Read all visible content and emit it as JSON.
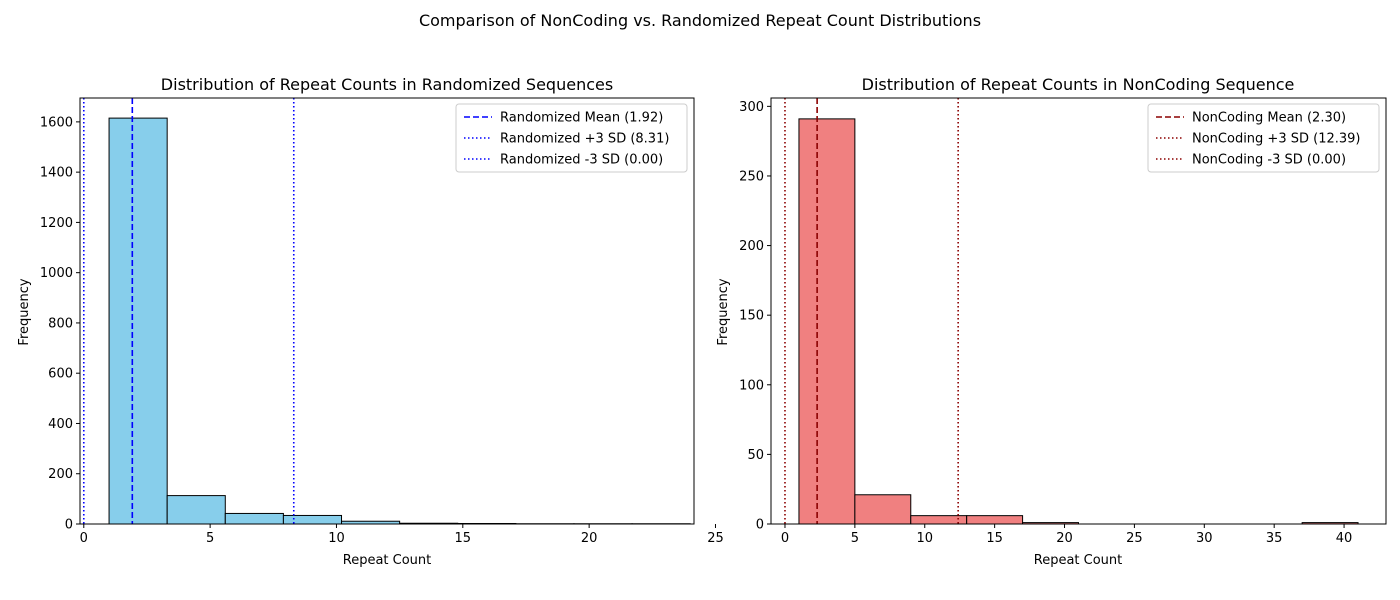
{
  "figure": {
    "suptitle": "Comparison of NonCoding vs. Randomized Repeat Count Distributions"
  },
  "chart_data": [
    {
      "type": "bar",
      "histogram": true,
      "title": "Distribution of Repeat Counts in Randomized Sequences",
      "xlabel": "Repeat Count",
      "ylabel": "Frequency",
      "xlim": [
        -0.15,
        24.15
      ],
      "ylim": [
        0,
        1695
      ],
      "xticks": [
        0,
        5,
        10,
        15,
        20,
        25
      ],
      "yticks": [
        0,
        200,
        400,
        600,
        800,
        1000,
        1200,
        1400,
        1600
      ],
      "bins": [
        {
          "start": 1.0,
          "end": 3.3,
          "value": 1615
        },
        {
          "start": 3.3,
          "end": 5.6,
          "value": 113
        },
        {
          "start": 5.6,
          "end": 7.9,
          "value": 42
        },
        {
          "start": 7.9,
          "end": 10.2,
          "value": 34
        },
        {
          "start": 10.2,
          "end": 12.5,
          "value": 11
        },
        {
          "start": 12.5,
          "end": 14.8,
          "value": 3
        },
        {
          "start": 14.8,
          "end": 17.1,
          "value": 2
        },
        {
          "start": 17.1,
          "end": 19.4,
          "value": 1
        },
        {
          "start": 19.4,
          "end": 21.7,
          "value": 1
        },
        {
          "start": 21.7,
          "end": 24.0,
          "value": 1
        }
      ],
      "bar_color": "#87ceeb",
      "edge_color": "#000000",
      "lines": [
        {
          "x": 1.92,
          "style": "dashed",
          "color": "#0000ff",
          "label": "Randomized Mean (1.92)"
        },
        {
          "x": 8.31,
          "style": "dotted",
          "color": "#0000ff",
          "label": "Randomized +3 SD (8.31)"
        },
        {
          "x": 0.0,
          "style": "dotted",
          "color": "#0000ff",
          "label": "Randomized -3 SD (0.00)"
        }
      ],
      "legend_position": "top-right"
    },
    {
      "type": "bar",
      "histogram": true,
      "title": "Distribution of Repeat Counts in NonCoding Sequence",
      "xlabel": "Repeat Count",
      "ylabel": "Frequency",
      "xlim": [
        -1.0,
        43.0
      ],
      "ylim": [
        0,
        306
      ],
      "xticks": [
        0,
        5,
        10,
        15,
        20,
        25,
        30,
        35,
        40
      ],
      "yticks": [
        0,
        50,
        100,
        150,
        200,
        250,
        300
      ],
      "bins": [
        {
          "start": 1.0,
          "end": 5.0,
          "value": 291
        },
        {
          "start": 5.0,
          "end": 9.0,
          "value": 21
        },
        {
          "start": 9.0,
          "end": 13.0,
          "value": 6
        },
        {
          "start": 13.0,
          "end": 17.0,
          "value": 6
        },
        {
          "start": 17.0,
          "end": 21.0,
          "value": 1
        },
        {
          "start": 21.0,
          "end": 25.0,
          "value": 0
        },
        {
          "start": 25.0,
          "end": 29.0,
          "value": 0
        },
        {
          "start": 29.0,
          "end": 33.0,
          "value": 0
        },
        {
          "start": 33.0,
          "end": 37.0,
          "value": 0
        },
        {
          "start": 37.0,
          "end": 41.0,
          "value": 1
        }
      ],
      "bar_color": "#f08080",
      "edge_color": "#000000",
      "lines": [
        {
          "x": 2.3,
          "style": "dashed",
          "color": "#8b0000",
          "label": "NonCoding Mean (2.30)"
        },
        {
          "x": 12.39,
          "style": "dotted",
          "color": "#8b0000",
          "label": "NonCoding +3 SD (12.39)"
        },
        {
          "x": 0.0,
          "style": "dotted",
          "color": "#8b0000",
          "label": "NonCoding -3 SD (0.00)"
        }
      ],
      "legend_position": "top-right"
    }
  ]
}
